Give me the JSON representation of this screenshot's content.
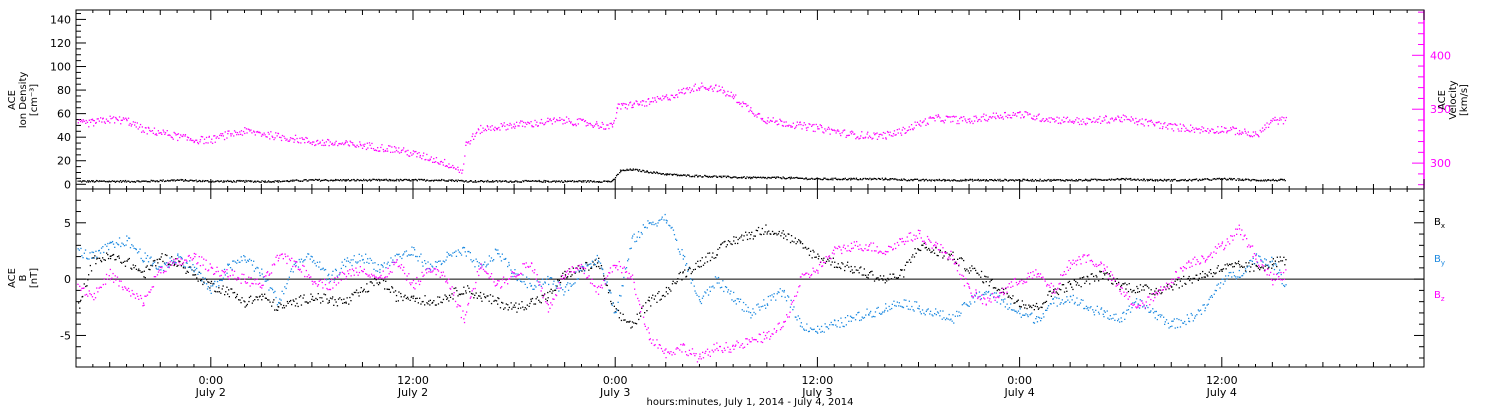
{
  "figure": {
    "xlabel": "hours:minutes, July  1, 2014 - July  4, 2014",
    "colors": {
      "black": "#000000",
      "magenta": "#ff00ff",
      "blue": "#1e8ae0"
    },
    "x_ticks": [
      {
        "hour": 0,
        "time": "0:00",
        "date": "July 2"
      },
      {
        "hour": 12,
        "time": "12:00",
        "date": "July 2"
      },
      {
        "hour": 24,
        "time": "0:00",
        "date": "July 3"
      },
      {
        "hour": 36,
        "time": "12:00",
        "date": "July 3"
      },
      {
        "hour": 48,
        "time": "0:00",
        "date": "July 4"
      },
      {
        "hour": 60,
        "time": "12:00",
        "date": "July 4"
      }
    ]
  },
  "chart_data": [
    {
      "type": "scatter",
      "left_label_lines": [
        "ACE",
        "Ion Density",
        "[cm⁻³]"
      ],
      "right_label_lines": [
        "ACE",
        "Velocity",
        "[km/s]"
      ],
      "xlim_hours_rel_july2": [
        -8,
        72
      ],
      "ylim_left": [
        -4,
        148
      ],
      "yticks_left": [
        "0",
        "20",
        "40",
        "60",
        "80",
        "100",
        "120",
        "140"
      ],
      "ylim_right": [
        276,
        442
      ],
      "yticks_right": [
        "300",
        "350",
        "400"
      ],
      "series": [
        {
          "color": "black",
          "axis": "left",
          "t": [
            -7.9,
            -6,
            -4,
            -2,
            0,
            2,
            4,
            6,
            8,
            10,
            12,
            14,
            15.5,
            18,
            20,
            22,
            23.8,
            24.3,
            25,
            26,
            27,
            28,
            30,
            32,
            34,
            36,
            38,
            40,
            42,
            44,
            46,
            48,
            50,
            52,
            54,
            56,
            58,
            60,
            62,
            63.8
          ],
          "v": [
            3,
            3,
            3,
            4,
            3,
            3,
            3,
            4,
            4,
            4,
            4,
            4,
            3,
            3,
            3,
            3,
            3,
            12,
            13,
            11,
            9,
            8,
            7,
            6,
            6,
            5,
            5,
            5,
            4,
            4,
            4,
            4,
            4,
            4,
            5,
            4,
            4,
            5,
            4,
            4
          ]
        },
        {
          "color": "magenta",
          "axis": "right",
          "t": [
            -7.9,
            -7,
            -6,
            -5,
            -4,
            -3,
            -2,
            -1,
            0,
            1,
            2,
            3,
            4,
            5,
            6,
            7,
            8,
            9,
            10,
            11,
            12,
            13,
            14,
            14.9,
            15.1,
            16,
            17,
            18,
            19,
            20,
            21,
            22,
            23,
            23.8,
            24.1,
            25,
            26,
            27,
            28,
            29,
            30,
            31,
            32,
            33,
            34,
            35,
            36,
            37,
            38,
            39,
            40,
            41,
            42,
            43,
            44,
            45,
            46,
            47,
            48,
            49,
            50,
            51,
            52,
            53,
            54,
            55,
            56,
            57,
            58,
            59,
            60,
            61,
            62,
            63,
            63.8
          ],
          "v": [
            337,
            338,
            341,
            340,
            331,
            329,
            325,
            322,
            322,
            327,
            330,
            328,
            325,
            323,
            320,
            319,
            318,
            317,
            315,
            313,
            309,
            305,
            300,
            293,
            318,
            332,
            334,
            336,
            337,
            339,
            340,
            338,
            336,
            334,
            352,
            355,
            357,
            361,
            367,
            372,
            370,
            362,
            350,
            340,
            338,
            335,
            333,
            330,
            327,
            326,
            326,
            330,
            337,
            342,
            341,
            340,
            343,
            345,
            346,
            343,
            341,
            340,
            339,
            341,
            342,
            339,
            337,
            334,
            333,
            331,
            332,
            330,
            326,
            340,
            340
          ]
        }
      ]
    },
    {
      "type": "scatter",
      "left_label_lines": [
        "ACE",
        "B",
        "[nT]"
      ],
      "xlim_hours_rel_july2": [
        -8,
        72
      ],
      "ylim": [
        -7.8,
        8
      ],
      "yticks": [
        "-5",
        "0",
        "5"
      ],
      "zero_line": true,
      "series": [
        {
          "name": "Bx",
          "color": "black",
          "t": [
            -7.9,
            -7,
            -6,
            -5,
            -4,
            -3,
            -2,
            -1,
            0,
            1,
            2,
            3,
            4,
            5,
            6,
            7,
            8,
            9,
            10,
            11,
            12,
            13,
            14,
            15,
            16,
            17,
            18,
            19,
            20,
            21,
            22,
            23,
            24,
            25,
            26,
            27,
            28,
            29,
            30,
            31,
            32,
            33,
            34,
            35,
            36,
            37,
            38,
            39,
            40,
            41,
            42,
            43,
            44,
            45,
            46,
            47,
            48,
            49,
            50,
            51,
            52,
            53,
            54,
            55,
            56,
            57,
            58,
            59,
            60,
            61,
            62,
            63,
            63.8
          ],
          "v": [
            -2.4,
            1.8,
            2.0,
            1.6,
            0.5,
            2.0,
            1.5,
            0.5,
            -0.5,
            -1.0,
            -2.0,
            -1.5,
            -2.5,
            -2.0,
            -1.5,
            -1.8,
            -2.0,
            -1.0,
            0.0,
            -1.5,
            -1.5,
            -2.0,
            -1.5,
            -0.8,
            -1.5,
            -2.0,
            -2.5,
            -2.0,
            -1.5,
            0.5,
            1.0,
            1.5,
            -3.0,
            -4.0,
            -2.0,
            -1.0,
            0.5,
            1.5,
            2.5,
            3.5,
            4.0,
            4.5,
            4.0,
            3.0,
            2.0,
            1.5,
            1.0,
            0.5,
            0.0,
            0.5,
            3.0,
            2.5,
            2.0,
            1.0,
            0.0,
            -1.0,
            -2.0,
            -2.5,
            -1.0,
            -0.5,
            0.0,
            0.5,
            -0.5,
            -0.8,
            -1.0,
            -0.5,
            0.0,
            0.5,
            1.0,
            1.2,
            1.0,
            1.5,
            1.8
          ]
        },
        {
          "name": "By",
          "color": "blue",
          "t": [
            -7.9,
            -7,
            -6,
            -5,
            -4,
            -3,
            -2,
            -1,
            0,
            1,
            2,
            3,
            4,
            5,
            6,
            7,
            8,
            9,
            10,
            11,
            12,
            13,
            14,
            15,
            16,
            17,
            18,
            19,
            20,
            21,
            22,
            23,
            24,
            25,
            26,
            27,
            28,
            29,
            30,
            31,
            32,
            33,
            34,
            35,
            36,
            37,
            38,
            39,
            40,
            41,
            42,
            43,
            44,
            45,
            46,
            47,
            48,
            49,
            50,
            51,
            52,
            53,
            54,
            55,
            56,
            57,
            58,
            59,
            60,
            61,
            62,
            63,
            63.8
          ],
          "v": [
            2.5,
            2.0,
            3.0,
            3.5,
            2.0,
            1.0,
            2.0,
            1.0,
            -1.0,
            1.0,
            2.0,
            0.5,
            -2.0,
            1.5,
            2.0,
            0.0,
            1.5,
            2.0,
            1.0,
            2.0,
            2.5,
            1.0,
            2.0,
            2.5,
            1.0,
            2.5,
            0.5,
            -0.5,
            0.0,
            -1.0,
            1.0,
            2.0,
            -3.0,
            3.5,
            5.0,
            5.5,
            2.0,
            -2.0,
            0.0,
            -1.5,
            -3.0,
            -2.0,
            -1.0,
            -4.0,
            -4.5,
            -4.0,
            -3.5,
            -3.0,
            -2.5,
            -2.0,
            -2.5,
            -3.0,
            -3.5,
            -2.0,
            -1.0,
            -2.0,
            -3.0,
            -3.5,
            -2.0,
            -1.5,
            -2.5,
            -3.0,
            -3.5,
            -2.0,
            -3.0,
            -4.0,
            -3.5,
            -2.5,
            0.0,
            0.5,
            2.0,
            1.5,
            -0.5
          ]
        },
        {
          "name": "Bz",
          "color": "magenta",
          "t": [
            -7.9,
            -7,
            -6,
            -5,
            -4,
            -3,
            -2,
            -1,
            0,
            1,
            2,
            3,
            4,
            5,
            6,
            7,
            8,
            9,
            10,
            11,
            12,
            13,
            14,
            15,
            16,
            17,
            18,
            19,
            20,
            21,
            22,
            23,
            24,
            25,
            26,
            27,
            28,
            29,
            30,
            31,
            32,
            33,
            34,
            35,
            36,
            37,
            38,
            39,
            40,
            41,
            42,
            43,
            44,
            45,
            46,
            47,
            48,
            49,
            50,
            51,
            52,
            53,
            54,
            55,
            56,
            57,
            58,
            59,
            60,
            61,
            62,
            63,
            63.8
          ],
          "v": [
            -0.5,
            -1.5,
            0.5,
            -1.0,
            -2.0,
            1.0,
            1.5,
            2.0,
            1.0,
            0.5,
            0.0,
            -0.5,
            2.0,
            1.5,
            0.0,
            -0.5,
            0.5,
            1.0,
            0.0,
            1.5,
            -0.5,
            1.0,
            0.0,
            -3.5,
            1.5,
            -0.5,
            0.5,
            1.5,
            -2.5,
            0.5,
            1.0,
            -1.0,
            1.5,
            0.0,
            -5.0,
            -6.5,
            -6.0,
            -7.0,
            -6.0,
            -6.0,
            -5.5,
            -5.0,
            -4.0,
            0.0,
            1.0,
            2.5,
            3.0,
            3.0,
            2.5,
            3.5,
            4.0,
            3.0,
            2.0,
            -1.0,
            -2.0,
            -1.0,
            0.0,
            0.5,
            -1.0,
            1.5,
            2.0,
            1.0,
            -1.0,
            -2.5,
            -1.5,
            0.0,
            1.5,
            2.0,
            3.0,
            4.5,
            2.0,
            0.0,
            0.5
          ]
        }
      ],
      "legend_placement": "right"
    }
  ]
}
